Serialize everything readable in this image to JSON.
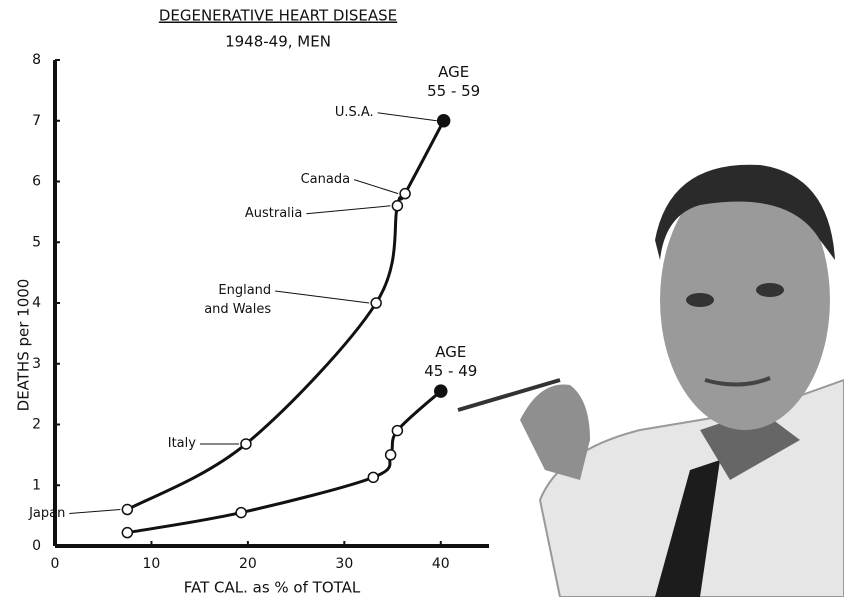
{
  "chart_data": {
    "type": "line",
    "title": "DEGENERATIVE HEART DISEASE",
    "subtitle": "1948-49, MEN",
    "x_label": "FAT CAL. as % of TOTAL",
    "y_label": "DEATHS per 1000",
    "xlim": [
      0,
      45
    ],
    "xticks": [
      0,
      10,
      20,
      30,
      40
    ],
    "ylim": [
      0,
      8
    ],
    "yticks": [
      0,
      1,
      2,
      3,
      4,
      5,
      6,
      7,
      8
    ],
    "series": [
      {
        "name": "AGE\n55 - 59",
        "color": "#111111",
        "x": [
          7.5,
          19.8,
          33.3,
          35.5,
          36.3,
          40.3
        ],
        "values": [
          0.6,
          1.68,
          4.0,
          5.6,
          5.8,
          7.0
        ],
        "point_labels": [
          "Japan",
          "Italy",
          "England\nand Wales",
          "Australia",
          "Canada",
          "U.S.A."
        ]
      },
      {
        "name": "AGE\n45 - 49",
        "color": "#111111",
        "x": [
          7.5,
          19.3,
          33.0,
          34.8,
          35.5,
          40.0
        ],
        "values": [
          0.22,
          0.55,
          1.13,
          1.5,
          1.9,
          2.55
        ]
      }
    ]
  }
}
